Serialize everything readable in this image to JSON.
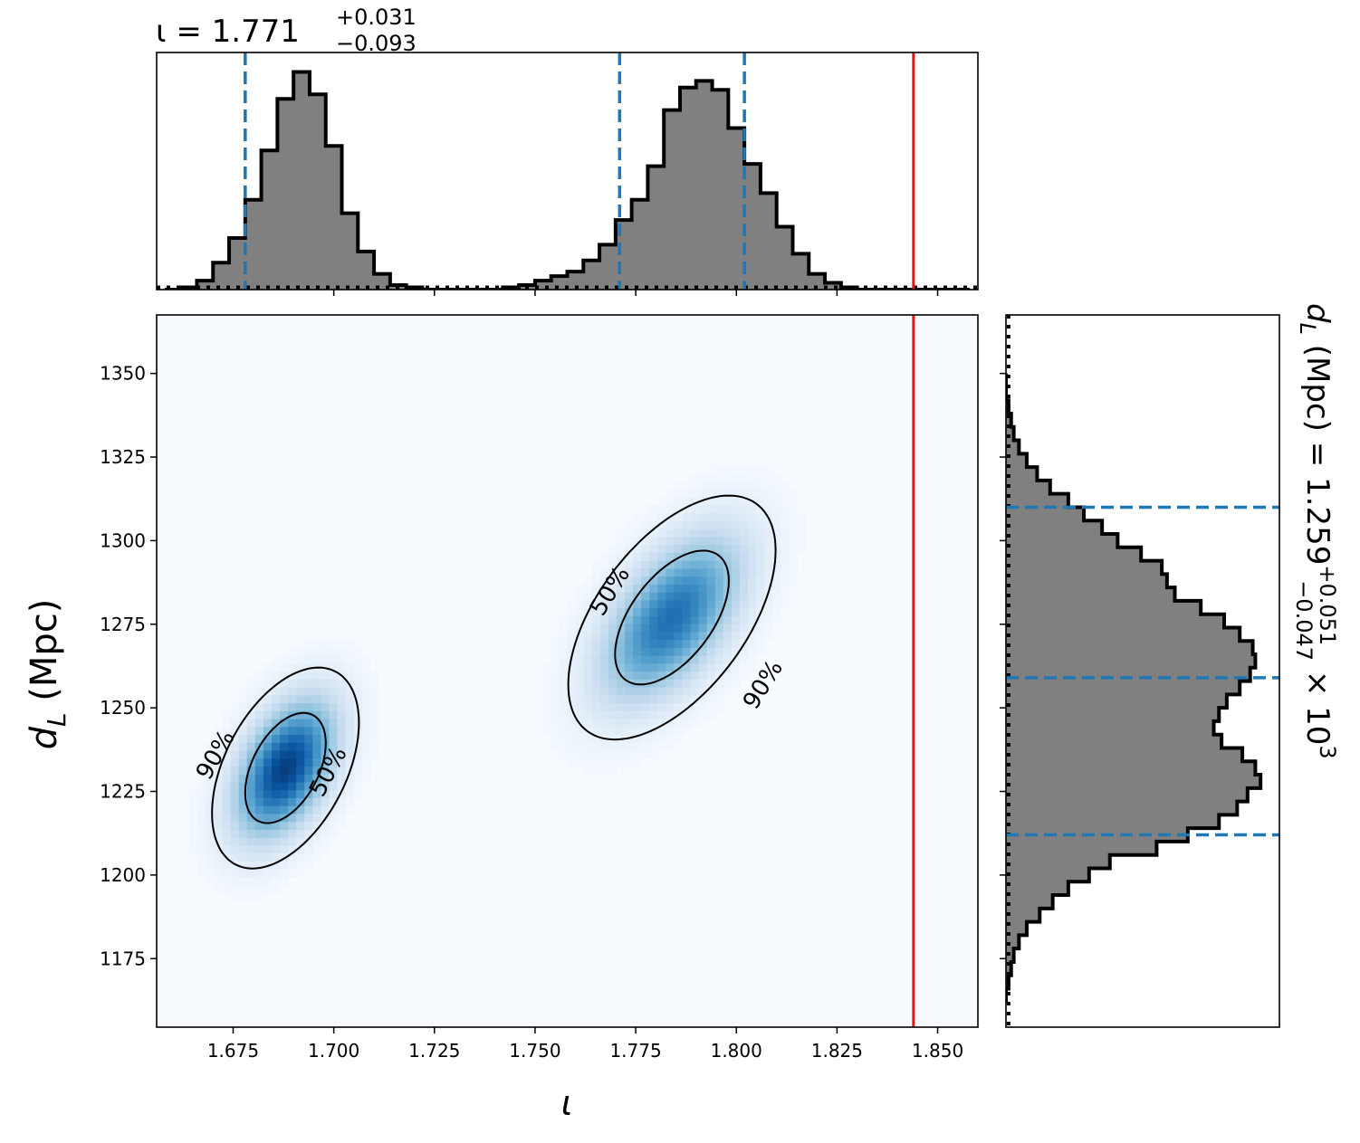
{
  "chart_data": [
    {
      "type": "histogram",
      "panel": "top-marginal",
      "parameter": "ι",
      "title": {
        "prefix": "ι = 1.771",
        "sup": "+0.031",
        "sub": "−0.093"
      },
      "xlim": [
        1.656,
        1.86
      ],
      "xticks": [
        1.7,
        1.725,
        1.75,
        1.775,
        1.8,
        1.825,
        1.85
      ],
      "bin_edges": [
        1.658,
        1.662,
        1.666,
        1.67,
        1.674,
        1.678,
        1.682,
        1.686,
        1.69,
        1.694,
        1.698,
        1.702,
        1.706,
        1.71,
        1.714,
        1.718,
        1.722,
        1.726,
        1.73,
        1.734,
        1.738,
        1.742,
        1.746,
        1.75,
        1.754,
        1.758,
        1.762,
        1.766,
        1.77,
        1.774,
        1.778,
        1.782,
        1.786,
        1.79,
        1.794,
        1.798,
        1.802,
        1.806,
        1.81,
        1.814,
        1.818,
        1.822,
        1.826,
        1.83,
        1.834,
        1.838,
        1.842,
        1.846,
        1.85,
        1.854,
        1.858
      ],
      "counts": [
        0.0,
        0.01,
        0.04,
        0.12,
        0.23,
        0.4,
        0.62,
        0.85,
        0.97,
        0.87,
        0.64,
        0.34,
        0.17,
        0.07,
        0.02,
        0.01,
        0.0,
        0.0,
        0.0,
        0.0,
        0.0,
        0.01,
        0.02,
        0.04,
        0.06,
        0.08,
        0.13,
        0.2,
        0.31,
        0.4,
        0.55,
        0.8,
        0.9,
        0.93,
        0.89,
        0.72,
        0.56,
        0.43,
        0.28,
        0.16,
        0.07,
        0.03,
        0.01,
        0.0,
        0.0,
        0.0,
        0.0,
        0.0,
        0.0,
        0.0
      ],
      "quantile_lines": [
        1.678,
        1.771,
        1.802
      ],
      "truth_line": 1.844,
      "prior_level": 0.01,
      "colors": {
        "fill": "#808080",
        "edge": "#000000",
        "quantile": "#1f77b4",
        "truth": "#ee1111"
      }
    },
    {
      "type": "heatmap",
      "panel": "joint",
      "xlabel": "ι",
      "ylabel": {
        "main": "d",
        "sub": "L",
        "rest": " (Mpc)"
      },
      "xlim": [
        1.656,
        1.86
      ],
      "ylim": [
        1154.5,
        1367.5
      ],
      "xticks": [
        1.675,
        1.7,
        1.725,
        1.75,
        1.775,
        1.8,
        1.825,
        1.85
      ],
      "xtick_labels": [
        "1.675",
        "1.700",
        "1.725",
        "1.750",
        "1.775",
        "1.800",
        "1.825",
        "1.850"
      ],
      "yticks": [
        1175,
        1200,
        1225,
        1250,
        1275,
        1300,
        1325,
        1350
      ],
      "yticks_labels": [
        "1175",
        "1200",
        "1225",
        "1250",
        "1275",
        "1300",
        "1325",
        "1350"
      ],
      "blobs": [
        {
          "mx": 1.688,
          "my": 1232,
          "sx": 0.0085,
          "sy": 14,
          "rho": 0.45,
          "w": 1.0
        },
        {
          "mx": 1.784,
          "my": 1277,
          "sx": 0.012,
          "sy": 17,
          "rho": 0.55,
          "w": 0.8
        }
      ],
      "contours": [
        {
          "level": "90%",
          "blob": 0,
          "r": 2.146
        },
        {
          "level": "50%",
          "blob": 0,
          "r": 1.177
        },
        {
          "level": "90%",
          "blob": 1,
          "r": 2.146
        },
        {
          "level": "50%",
          "blob": 1,
          "r": 1.177
        }
      ],
      "contour_labels": [
        {
          "text": "90%",
          "x": 1.6705,
          "y": 1236,
          "rot": -60
        },
        {
          "text": "50%",
          "x": 1.6985,
          "y": 1231,
          "rot": -62
        },
        {
          "text": "50%",
          "x": 1.7685,
          "y": 1285,
          "rot": -58
        },
        {
          "text": "90%",
          "x": 1.8065,
          "y": 1257,
          "rot": -58
        }
      ],
      "truth_line_x": 1.844,
      "colormap": "Blues",
      "colors": {
        "truth": "#ee1111",
        "contour": "#000000"
      }
    },
    {
      "type": "histogram",
      "orientation": "horizontal",
      "panel": "right-marginal",
      "parameter": "d_L (Mpc)",
      "title": {
        "prefix_main": "d",
        "prefix_sub": "L",
        "prefix_rest": " (Mpc) = 1.259",
        "sup": "+0.051",
        "sub": "−0.047",
        "suffix": " × 10",
        "suffix_exp": "3"
      },
      "ylim": [
        1154.5,
        1367.5
      ],
      "yticks": [
        1175,
        1200,
        1225,
        1250,
        1275,
        1300,
        1325,
        1350
      ],
      "bin_edges": [
        1162,
        1166,
        1170,
        1174,
        1178,
        1182,
        1186,
        1190,
        1194,
        1198,
        1202,
        1206,
        1210,
        1214,
        1218,
        1222,
        1226,
        1230,
        1234,
        1238,
        1242,
        1246,
        1250,
        1254,
        1258,
        1262,
        1266,
        1270,
        1274,
        1278,
        1282,
        1286,
        1290,
        1294,
        1298,
        1302,
        1306,
        1310,
        1314,
        1318,
        1322,
        1326,
        1330,
        1334,
        1338,
        1342,
        1346,
        1350
      ],
      "counts": [
        0.0,
        0.01,
        0.02,
        0.03,
        0.05,
        0.08,
        0.13,
        0.18,
        0.24,
        0.32,
        0.4,
        0.58,
        0.7,
        0.82,
        0.89,
        0.93,
        0.98,
        0.96,
        0.91,
        0.83,
        0.8,
        0.82,
        0.85,
        0.9,
        0.94,
        0.96,
        0.95,
        0.9,
        0.84,
        0.75,
        0.65,
        0.62,
        0.6,
        0.52,
        0.43,
        0.37,
        0.3,
        0.24,
        0.17,
        0.12,
        0.08,
        0.05,
        0.03,
        0.02,
        0.01,
        0.0,
        0.0
      ],
      "quantile_lines": [
        1212,
        1259,
        1310
      ],
      "prior_level": 0.01,
      "colors": {
        "fill": "#808080",
        "edge": "#000000",
        "quantile": "#1f77b4"
      }
    }
  ]
}
